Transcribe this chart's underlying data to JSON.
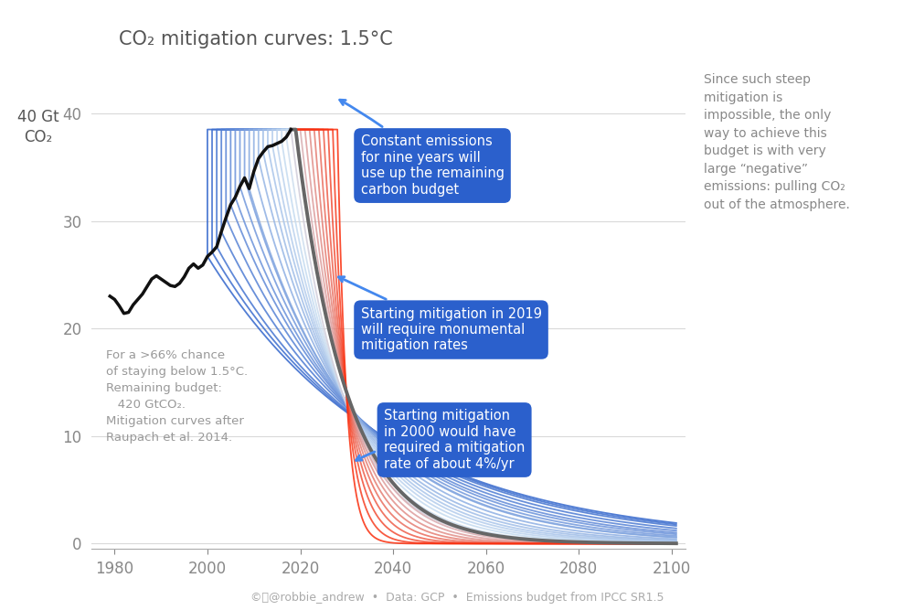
{
  "title": "CO₂ mitigation curves: 1.5°C",
  "xlim": [
    1975,
    2103
  ],
  "ylim": [
    -0.5,
    46
  ],
  "yticks": [
    0,
    10,
    20,
    30,
    40
  ],
  "xticks": [
    1980,
    2000,
    2020,
    2040,
    2060,
    2080,
    2100
  ],
  "footer": "©ⓒ@robbie_andrew  •  Data: GCP  •  Emissions budget from IPCC SR1.5",
  "annotation_right": "Since such steep\nmitigation is\nimpossible, the only\nway to achieve this\nbudget is with very\nlarge “negative”\nemissions: pulling CO₂\nout of the atmosphere.",
  "annotation1_text": "Constant emissions\nfor nine years will\nuse up the remaining\ncarbon budget",
  "annotation2_text": "Starting mitigation in 2019\nwill require monumental\nmitigation rates",
  "annotation3_text": "Starting mitigation\nin 2000 would have\nrequired a mitigation\nrate of about 4%/yr",
  "left_annotation": "For a >66% chance\nof staying below 1.5°C.\nRemaining budget:\n   420 GtCO₂.\nMitigation curves after\nRaupach et al. 2014.",
  "background_color": "#ffffff",
  "box_color": "#2b60cc",
  "grid_color": "#d0d0d0",
  "hist_line_color": "#111111",
  "ylabel_text": "40 Gt\nCO₂"
}
